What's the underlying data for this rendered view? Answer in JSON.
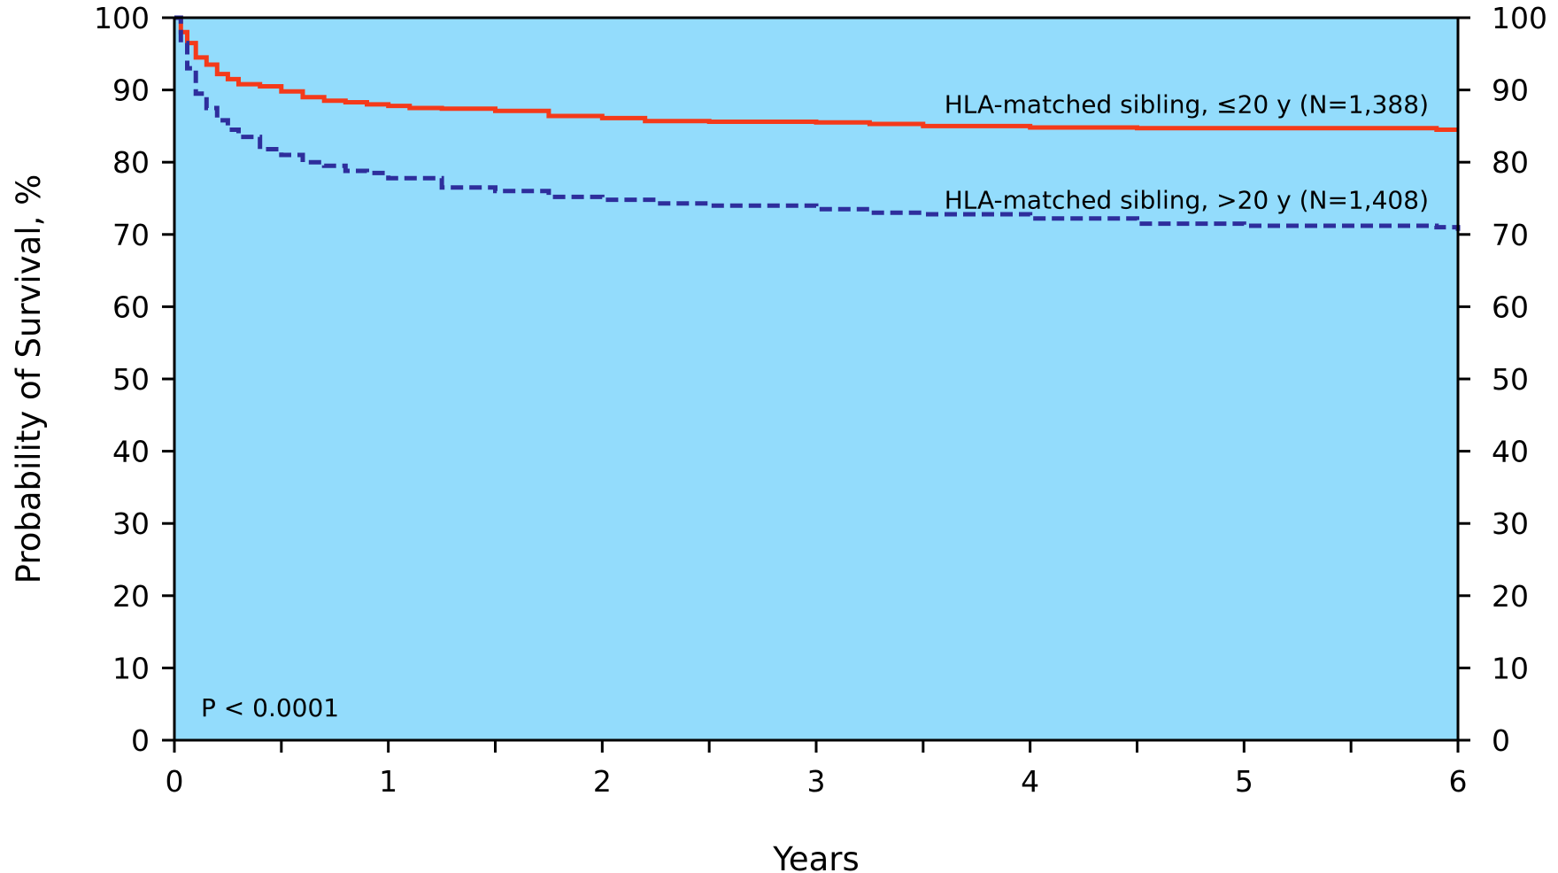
{
  "chart_data": {
    "type": "line",
    "title": "",
    "xlabel": "Years",
    "ylabel": "Probability of Survival, %",
    "xlim": [
      0,
      6
    ],
    "ylim": [
      0,
      100
    ],
    "x_ticks": [
      "0",
      "1",
      "2",
      "3",
      "4",
      "5",
      "6"
    ],
    "y_ticks": [
      "0",
      "10",
      "20",
      "30",
      "40",
      "50",
      "60",
      "70",
      "80",
      "90",
      "100"
    ],
    "y_axis_right": true,
    "grid": false,
    "background_color": "#93DCFC",
    "annotations": [
      {
        "text": "P < 0.0001"
      }
    ],
    "series": [
      {
        "name": "HLA-matched sibling, ≤20 y (N=1,388)",
        "color": "#F43A1A",
        "style": "solid",
        "x": [
          0,
          0.03,
          0.06,
          0.1,
          0.15,
          0.2,
          0.25,
          0.3,
          0.4,
          0.5,
          0.6,
          0.7,
          0.8,
          0.9,
          1.0,
          1.1,
          1.25,
          1.5,
          1.75,
          2.0,
          2.2,
          2.5,
          3.0,
          3.25,
          3.5,
          4.0,
          4.5,
          5.0,
          5.5,
          5.9,
          6.0
        ],
        "y": [
          100,
          98.0,
          96.5,
          94.5,
          93.5,
          92.2,
          91.5,
          90.8,
          90.5,
          89.8,
          89.0,
          88.5,
          88.3,
          88.0,
          87.8,
          87.5,
          87.4,
          87.1,
          86.4,
          86.1,
          85.7,
          85.6,
          85.5,
          85.3,
          85.0,
          84.8,
          84.7,
          84.7,
          84.7,
          84.5,
          84.5
        ]
      },
      {
        "name": "HLA-matched sibling, >20 y (N=1,408)",
        "color": "#2E2E9C",
        "style": "dashed",
        "x": [
          0,
          0.03,
          0.06,
          0.1,
          0.15,
          0.2,
          0.25,
          0.3,
          0.4,
          0.5,
          0.6,
          0.7,
          0.8,
          0.9,
          1.0,
          1.25,
          1.5,
          1.75,
          2.0,
          2.25,
          2.5,
          3.0,
          3.25,
          3.5,
          4.0,
          4.5,
          5.0,
          5.5,
          5.9,
          6.0
        ],
        "y": [
          100,
          96.5,
          93.0,
          89.5,
          87.5,
          85.8,
          84.5,
          83.5,
          81.8,
          81.0,
          80.0,
          79.5,
          78.8,
          78.5,
          77.8,
          76.5,
          76.0,
          75.2,
          74.8,
          74.3,
          74.0,
          73.5,
          73.0,
          72.8,
          72.2,
          71.5,
          71.2,
          71.2,
          71.0,
          70.5
        ]
      }
    ]
  }
}
